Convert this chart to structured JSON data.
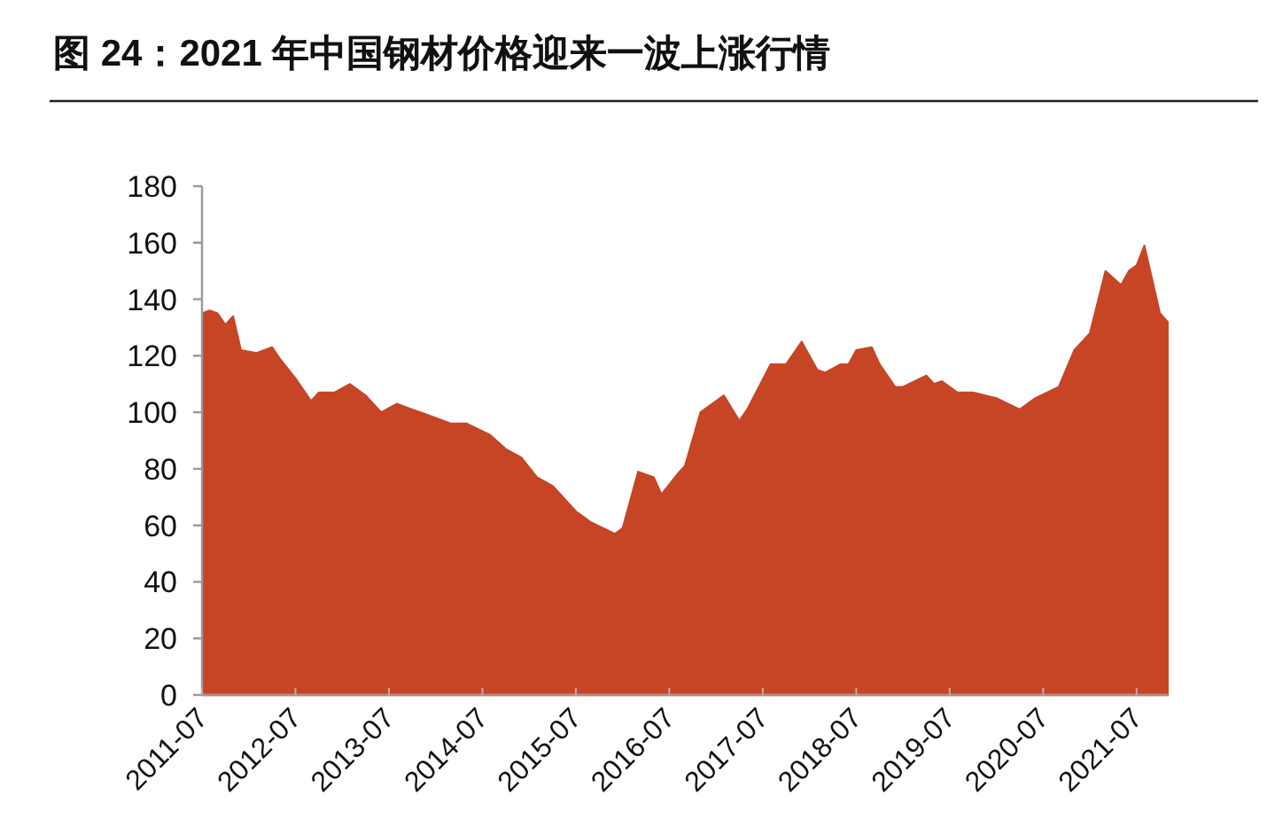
{
  "chart_data": {
    "type": "area",
    "title": "图 24：2021 年中国钢材价格迎来一波上涨行情",
    "color": "#c64525",
    "x": [
      "2011-07",
      "2011-08",
      "2011-09",
      "2011-10",
      "2011-11",
      "2011-12",
      "2012-02",
      "2012-04",
      "2012-05",
      "2012-07",
      "2012-09",
      "2012-10",
      "2012-12",
      "2013-02",
      "2013-04",
      "2013-06",
      "2013-08",
      "2013-10",
      "2013-12",
      "2014-03",
      "2014-05",
      "2014-08",
      "2014-10",
      "2014-12",
      "2015-02",
      "2015-04",
      "2015-07",
      "2015-09",
      "2015-12",
      "2016-01",
      "2016-03",
      "2016-05",
      "2016-06",
      "2016-08",
      "2016-09",
      "2016-11",
      "2017-02",
      "2017-04",
      "2017-05",
      "2017-08",
      "2017-10",
      "2017-12",
      "2018-02",
      "2018-03",
      "2018-05",
      "2018-06",
      "2018-07",
      "2018-09",
      "2018-10",
      "2018-12",
      "2019-01",
      "2019-04",
      "2019-05",
      "2019-06",
      "2019-08",
      "2019-10",
      "2020-01",
      "2020-04",
      "2020-06",
      "2020-09",
      "2020-11",
      "2021-01",
      "2021-03",
      "2021-05",
      "2021-06",
      "2021-07",
      "2021-08",
      "2021-10",
      "2021-11"
    ],
    "values": [
      135,
      136,
      135,
      131,
      134,
      122,
      121,
      123,
      119,
      112,
      104,
      107,
      107,
      110,
      106,
      100,
      103,
      101,
      99,
      96,
      96,
      92,
      87,
      84,
      77,
      74,
      65,
      61,
      57,
      59,
      79,
      77,
      71,
      78,
      81,
      100,
      106,
      97,
      101,
      117,
      117,
      125,
      115,
      114,
      117,
      117,
      122,
      123,
      117,
      109,
      109,
      113,
      110,
      111,
      107,
      107,
      105,
      101,
      105,
      109,
      122,
      128,
      150,
      145,
      150,
      152,
      159,
      135,
      132
    ],
    "xlim": [
      "2011-07",
      "2021-11"
    ],
    "xticks": [
      "2011-07",
      "2012-07",
      "2013-07",
      "2014-07",
      "2015-07",
      "2016-07",
      "2017-07",
      "2018-07",
      "2019-07",
      "2020-07",
      "2021-07"
    ],
    "ylim": [
      0,
      180
    ],
    "yticks": [
      0,
      20,
      40,
      60,
      80,
      100,
      120,
      140,
      160,
      180
    ]
  }
}
